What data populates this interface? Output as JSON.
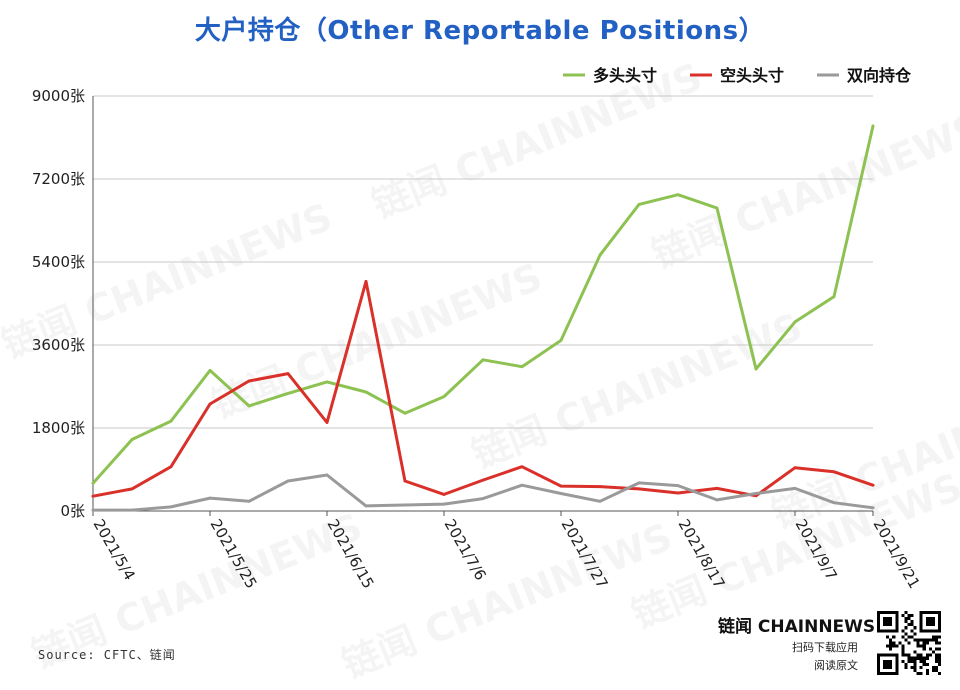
{
  "watermark_text": "链闻 CHAINNEWS",
  "source_text": "Source: CFTC、链闻",
  "brand": {
    "name": "链闻 CHAINNEWS",
    "line1": "扫码下载应用",
    "line2": "阅读原文"
  },
  "colors": {
    "title": "#2260c4",
    "long": "#8dc252",
    "short": "#d9302a",
    "spread": "#9a9a9a",
    "grid": "#c8c8c8"
  },
  "chart_data": {
    "type": "line",
    "title": "大户持仓（Other Reportable Positions）",
    "ylim": [
      0,
      9000
    ],
    "yticks": [
      "0张",
      "1800张",
      "3600张",
      "5400张",
      "7200张",
      "9000张"
    ],
    "ytick_values": [
      0,
      1800,
      3600,
      5400,
      7200,
      9000
    ],
    "x": [
      "2021/5/4",
      "2021/5/11",
      "2021/5/18",
      "2021/5/25",
      "2021/6/1",
      "2021/6/8",
      "2021/6/15",
      "2021/6/22",
      "2021/6/29",
      "2021/7/6",
      "2021/7/13",
      "2021/7/20",
      "2021/7/27",
      "2021/8/3",
      "2021/8/10",
      "2021/8/17",
      "2021/8/24",
      "2021/8/31",
      "2021/9/7",
      "2021/9/14",
      "2021/9/21"
    ],
    "xticks": [
      "2021/5/4",
      "2021/5/25",
      "2021/6/15",
      "2021/7/6",
      "2021/7/27",
      "2021/8/17",
      "2021/9/7",
      "2021/9/21"
    ],
    "legend_position": "top-right",
    "grid": true,
    "series": [
      {
        "name": "多头头寸",
        "color_key": "long",
        "values": [
          600,
          1550,
          1950,
          3050,
          2280,
          2550,
          2800,
          2580,
          2120,
          2480,
          3280,
          3130,
          3700,
          5550,
          6650,
          6860,
          6570,
          3080,
          4100,
          4650,
          8350
        ]
      },
      {
        "name": "空头头寸",
        "color_key": "short",
        "values": [
          320,
          480,
          960,
          2320,
          2820,
          2980,
          1920,
          4980,
          650,
          360,
          670,
          960,
          540,
          530,
          480,
          390,
          490,
          330,
          940,
          850,
          560
        ]
      },
      {
        "name": "双向持仓",
        "color_key": "spread",
        "values": [
          20,
          20,
          90,
          280,
          210,
          650,
          780,
          110,
          130,
          150,
          270,
          560,
          380,
          210,
          610,
          550,
          240,
          380,
          490,
          180,
          70
        ]
      }
    ]
  }
}
